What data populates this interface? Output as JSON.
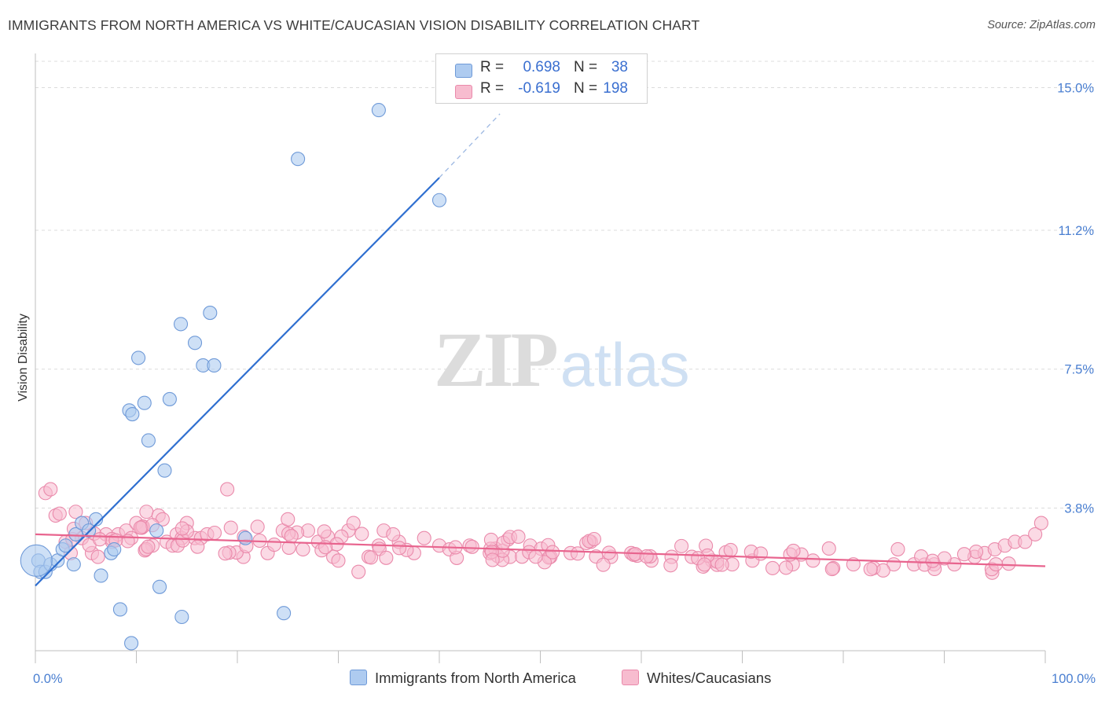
{
  "title": "IMMIGRANTS FROM NORTH AMERICA VS WHITE/CAUCASIAN VISION DISABILITY CORRELATION CHART",
  "source": "Source: ZipAtlas.com",
  "watermark": {
    "zip": "ZIP",
    "atlas": "atlas"
  },
  "legend": {
    "series1": {
      "r_label": "R =",
      "r_value": "0.698",
      "n_label": "N =",
      "n_value": "38"
    },
    "series2": {
      "r_label": "R =",
      "r_value": "-0.619",
      "n_label": "N =",
      "n_value": "198"
    }
  },
  "colors": {
    "blue_fill": "#aecbf0",
    "blue_stroke": "#6f9ad8",
    "blue_line": "#2f6fd0",
    "pink_fill": "#f7bccf",
    "pink_stroke": "#ea8aab",
    "pink_line": "#e8648e",
    "grid": "#dcdcdc",
    "tick_text": "#4a7fd1"
  },
  "chart_data": {
    "type": "scatter",
    "title": "IMMIGRANTS FROM NORTH AMERICA VS WHITE/CAUCASIAN VISION DISABILITY CORRELATION CHART",
    "xlabel": "",
    "ylabel": "Vision Disability",
    "xlim": [
      0,
      100
    ],
    "ylim": [
      0,
      15.7
    ],
    "x_tick_labels": [
      "0.0%",
      "100.0%"
    ],
    "y_ticks": [
      3.8,
      7.5,
      11.2,
      15.0
    ],
    "y_tick_labels": [
      "3.8%",
      "7.5%",
      "11.2%",
      "15.0%"
    ],
    "grid": true,
    "legend_position": "top-center",
    "series": [
      {
        "name": "Immigrants from North America",
        "color": "#aecbf0",
        "points": [
          [
            0.3,
            2.4
          ],
          [
            0.5,
            2.1
          ],
          [
            1.0,
            2.1
          ],
          [
            1.5,
            2.3
          ],
          [
            2.2,
            2.4
          ],
          [
            2.7,
            2.7
          ],
          [
            3.0,
            2.8
          ],
          [
            3.8,
            2.3
          ],
          [
            4.0,
            3.1
          ],
          [
            4.6,
            3.4
          ],
          [
            5.3,
            3.2
          ],
          [
            6.0,
            3.5
          ],
          [
            6.5,
            2.0
          ],
          [
            7.5,
            2.6
          ],
          [
            7.8,
            2.7
          ],
          [
            8.4,
            1.1
          ],
          [
            9.3,
            6.4
          ],
          [
            9.6,
            6.3
          ],
          [
            9.5,
            0.2
          ],
          [
            10.2,
            7.8
          ],
          [
            10.8,
            6.6
          ],
          [
            11.2,
            5.6
          ],
          [
            12.0,
            3.2
          ],
          [
            12.3,
            1.7
          ],
          [
            12.8,
            4.8
          ],
          [
            13.3,
            6.7
          ],
          [
            14.4,
            8.7
          ],
          [
            14.5,
            0.9
          ],
          [
            15.8,
            8.2
          ],
          [
            16.6,
            7.6
          ],
          [
            17.3,
            9.0
          ],
          [
            17.7,
            7.6
          ],
          [
            20.8,
            3.0
          ],
          [
            24.6,
            1.0
          ],
          [
            26.0,
            13.1
          ],
          [
            34.0,
            14.4
          ],
          [
            40.0,
            12.0
          ],
          [
            0.1,
            2.4
          ]
        ],
        "trendline": {
          "x": [
            0,
            40
          ],
          "y": [
            1.73,
            12.6
          ],
          "extension_x": [
            40,
            46
          ],
          "extension_y": [
            12.6,
            14.3
          ]
        }
      },
      {
        "name": "Whites/Caucasians",
        "color": "#f7bccf",
        "trendline": {
          "x": [
            0,
            100
          ],
          "y": [
            3.1,
            2.25
          ]
        }
      }
    ]
  }
}
